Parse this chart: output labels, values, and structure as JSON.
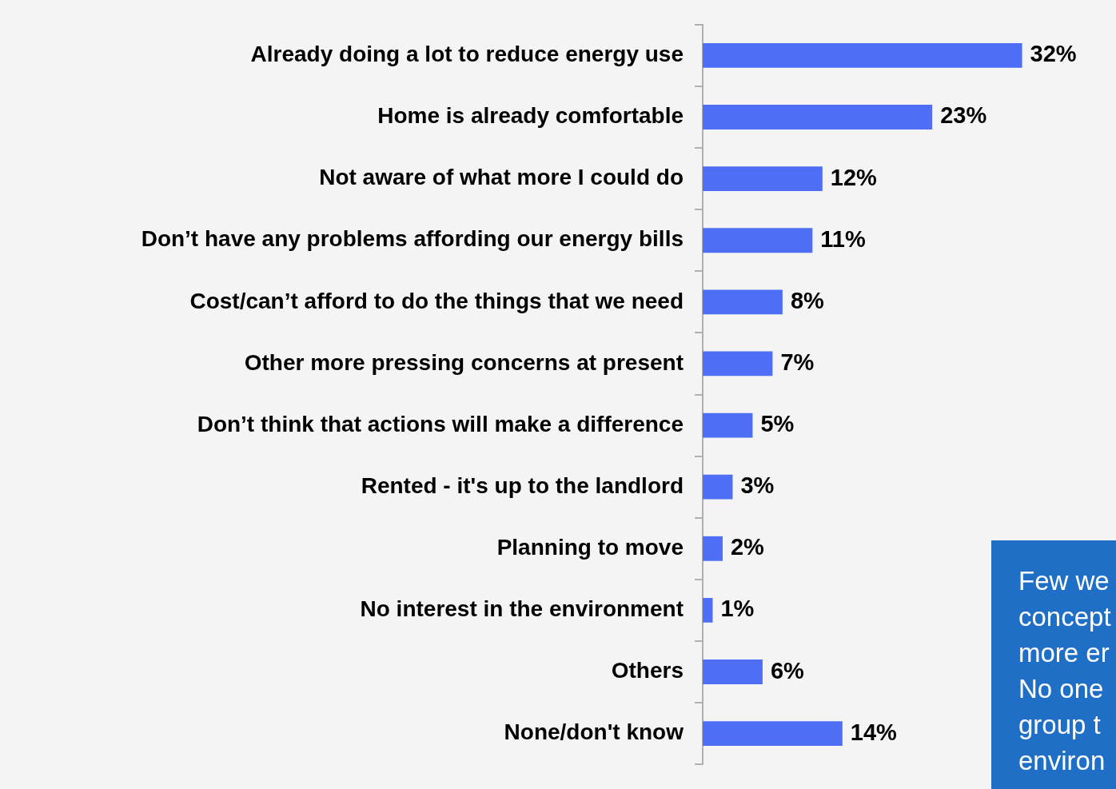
{
  "chart_data": {
    "type": "bar",
    "orientation": "horizontal",
    "categories": [
      "Already doing a lot to reduce energy use",
      "Home is already comfortable",
      "Not aware of what more I could do",
      "Don’t have any problems affording our energy bills",
      "Cost/can’t afford to do the things that we need",
      "Other more pressing concerns at present",
      "Don’t think that actions will make a difference",
      "Rented - it's up to the landlord",
      "Planning to move",
      "No interest in the environment",
      "Others",
      "None/don't know"
    ],
    "values": [
      32,
      23,
      12,
      11,
      8,
      7,
      5,
      3,
      2,
      1,
      6,
      14
    ],
    "value_labels": [
      "32%",
      "23%",
      "12%",
      "11%",
      "8%",
      "7%",
      "5%",
      "3%",
      "2%",
      "1%",
      "6%",
      "14%"
    ],
    "color": "#4d6ef5",
    "tick_labels": "y",
    "annotations": [
      "Few we",
      "concept",
      "more er",
      "No one",
      "group t",
      "environ"
    ]
  }
}
